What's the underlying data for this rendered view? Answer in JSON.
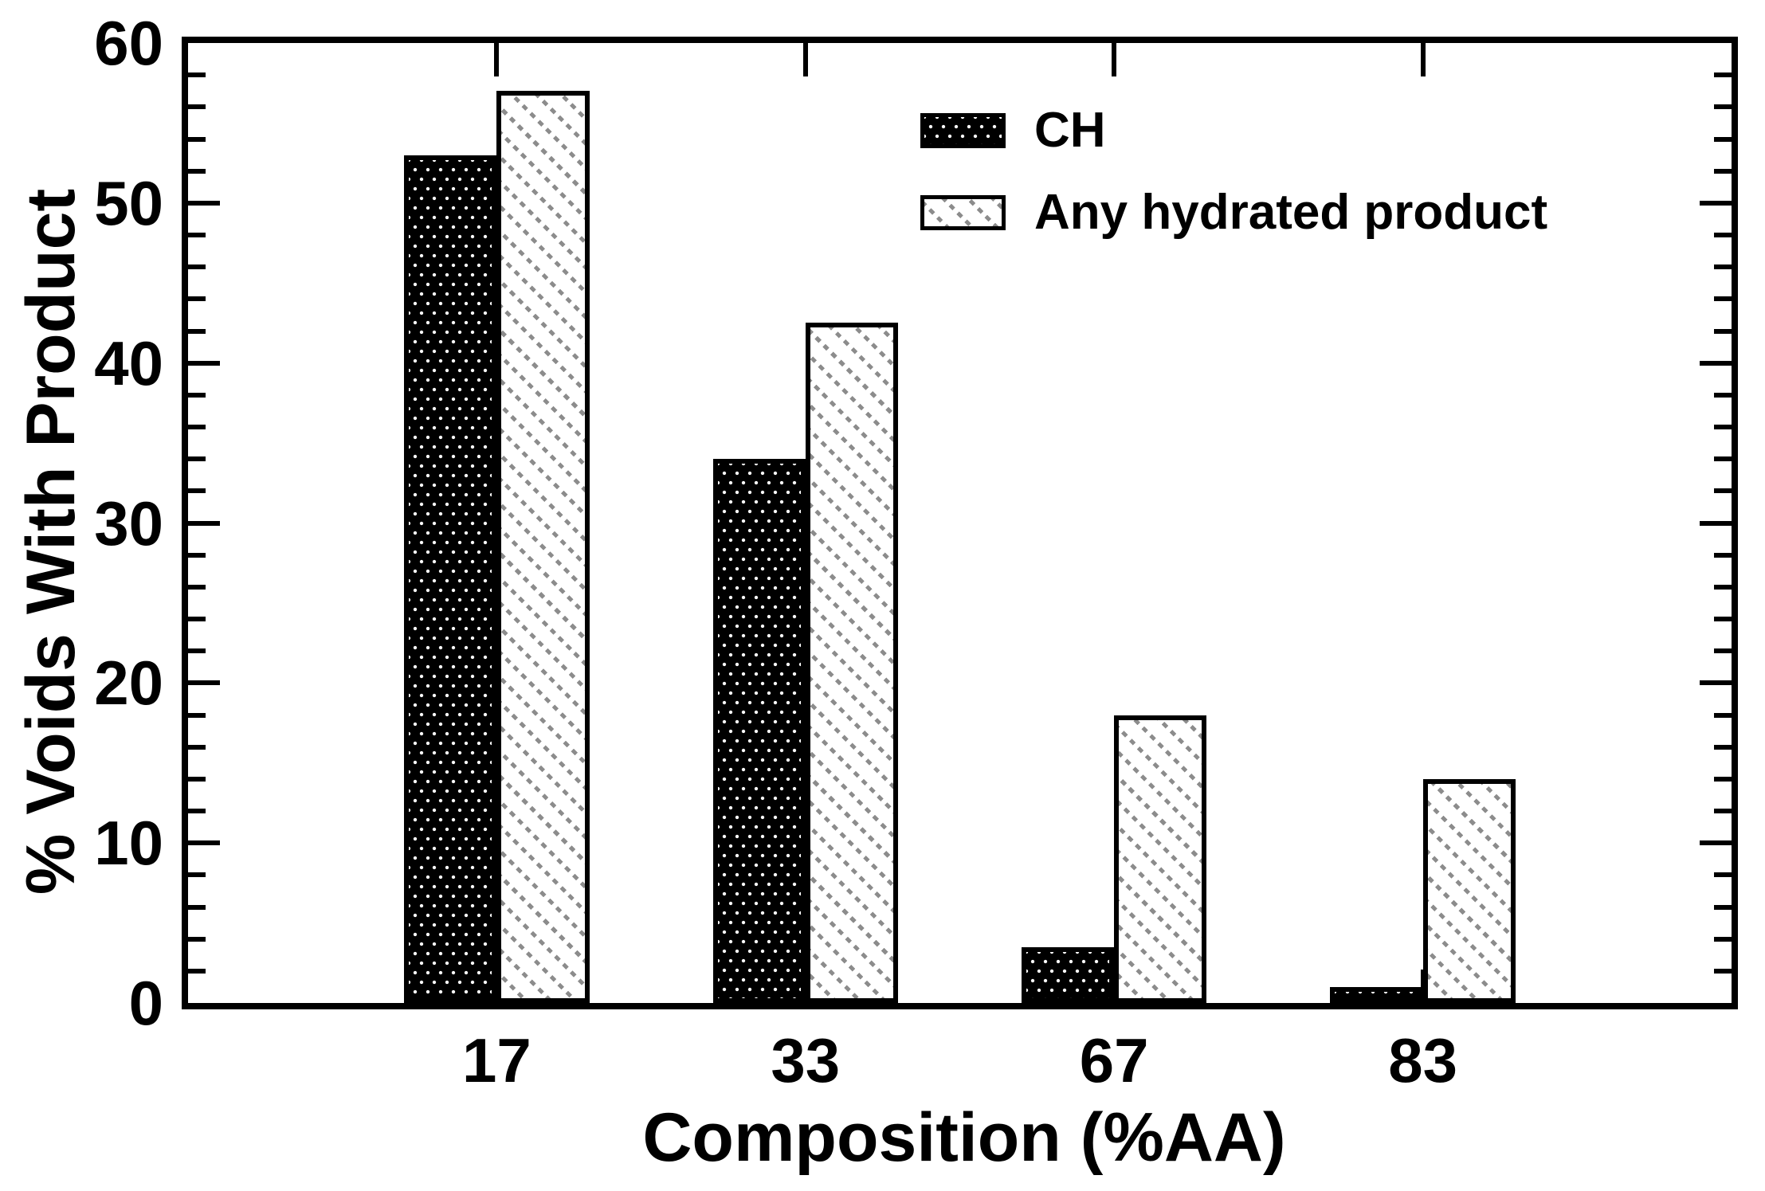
{
  "chart_data": {
    "type": "bar",
    "title": "",
    "xlabel": "Composition (%AA)",
    "ylabel": "% Voids With Product",
    "categories": [
      "17",
      "33",
      "67",
      "83"
    ],
    "series": [
      {
        "name": "CH",
        "slug": "ch",
        "values": [
          53,
          34,
          3.5,
          1
        ],
        "pattern": "white-dots-on-black"
      },
      {
        "name": "Any hydrated product",
        "slug": "any",
        "values": [
          57,
          42.5,
          18,
          14
        ],
        "pattern": "gray-dotted-diagonal-hatch"
      }
    ],
    "ylim": [
      0,
      60
    ],
    "yticks": [
      0,
      10,
      20,
      30,
      40,
      50,
      60
    ],
    "ytick_step": 10,
    "yminor_step": 2,
    "grid": "off",
    "legend_position": "inside-upper-middle",
    "bar_width_pct": 6,
    "colors": {
      "frame": "#000000",
      "background": "#ffffff",
      "text": "#000000",
      "ch_fill": "#000000",
      "ch_dots": "#ffffff",
      "hatch_line": "#8c8c8c",
      "any_fill": "#ffffff"
    }
  }
}
